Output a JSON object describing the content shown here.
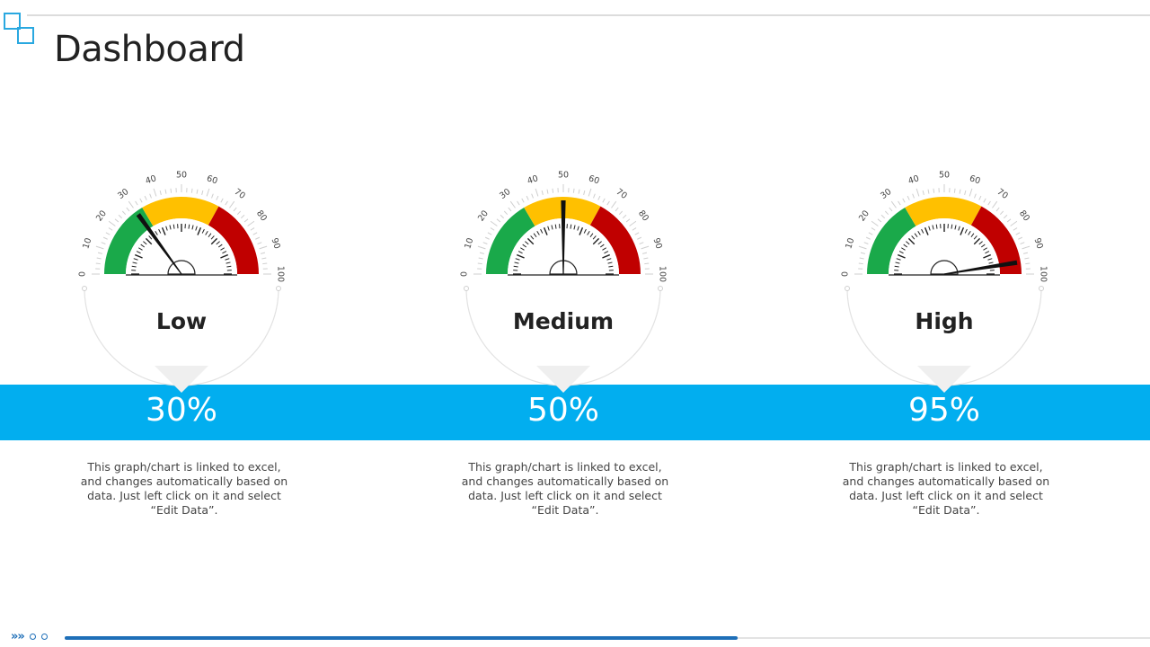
{
  "page": {
    "title": "Dashboard"
  },
  "colors": {
    "accent_band": "#02aeef",
    "low_zone": "#1aa94a",
    "medium_zone": "#ffc000",
    "high_zone": "#c00000",
    "needle": "#111111",
    "progress": "#1e6fb8"
  },
  "icons": {
    "logo": "overlapping-squares-icon",
    "footer_nav": "chevron-arrows-icon"
  },
  "footer": {
    "nav_glyph": "»»",
    "slide_progress": 0.62
  },
  "chart_data": [
    {
      "type": "gauge",
      "title": "Low",
      "value": 30,
      "value_label": "30%",
      "range": [
        0,
        100
      ],
      "ticks": [
        "0",
        "10",
        "20",
        "30",
        "40",
        "50",
        "60",
        "70",
        "80",
        "90",
        "100"
      ],
      "zones": [
        {
          "from": 0,
          "to": 33,
          "color": "#1aa94a"
        },
        {
          "from": 33,
          "to": 66,
          "color": "#ffc000"
        },
        {
          "from": 66,
          "to": 100,
          "color": "#c00000"
        }
      ],
      "description": "This graph/chart is linked to excel, and changes automatically based on data. Just left click on it and select “Edit Data”."
    },
    {
      "type": "gauge",
      "title": "Medium",
      "value": 50,
      "value_label": "50%",
      "range": [
        0,
        100
      ],
      "ticks": [
        "0",
        "10",
        "20",
        "30",
        "40",
        "50",
        "60",
        "70",
        "80",
        "90",
        "100"
      ],
      "zones": [
        {
          "from": 0,
          "to": 33,
          "color": "#1aa94a"
        },
        {
          "from": 33,
          "to": 66,
          "color": "#ffc000"
        },
        {
          "from": 66,
          "to": 100,
          "color": "#c00000"
        }
      ],
      "description": "This graph/chart is linked to excel, and changes automatically based on data. Just left click on it and select “Edit Data”."
    },
    {
      "type": "gauge",
      "title": "High",
      "value": 95,
      "value_label": "95%",
      "range": [
        0,
        100
      ],
      "ticks": [
        "0",
        "10",
        "20",
        "30",
        "40",
        "50",
        "60",
        "70",
        "80",
        "90",
        "100"
      ],
      "zones": [
        {
          "from": 0,
          "to": 33,
          "color": "#1aa94a"
        },
        {
          "from": 33,
          "to": 66,
          "color": "#ffc000"
        },
        {
          "from": 66,
          "to": 100,
          "color": "#c00000"
        }
      ],
      "description": "This graph/chart is linked to excel, and changes automatically based on data. Just left click on it and select “Edit Data”."
    }
  ]
}
